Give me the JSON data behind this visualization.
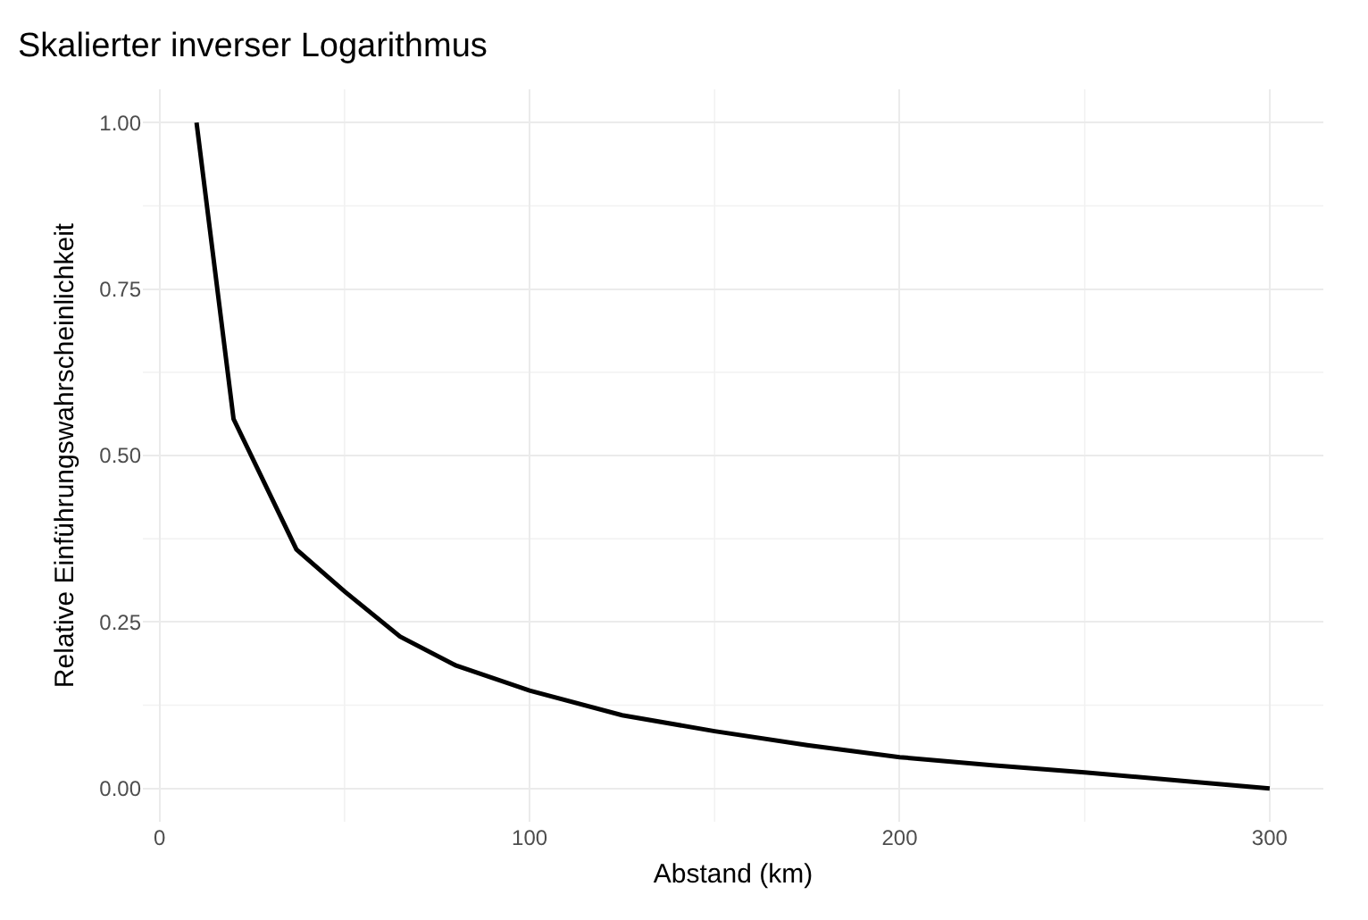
{
  "chart_data": {
    "type": "line",
    "title": "Skalierter inverser Logarithmus",
    "xlabel": "Abstand (km)",
    "ylabel": "Relative Einführungswahrscheinlichkeit",
    "x": [
      10,
      20,
      37,
      50,
      65,
      80,
      100,
      125,
      150,
      175,
      200,
      225,
      250,
      275,
      300
    ],
    "series": [
      {
        "color": "#000000",
        "values": [
          1.0,
          0.555,
          0.359,
          0.296,
          0.228,
          0.185,
          0.147,
          0.11,
          0.086,
          0.065,
          0.047,
          0.035,
          0.024,
          0.012,
          0.0
        ]
      }
    ],
    "xlim": [
      -4.5,
      314.5
    ],
    "xticks": [
      0,
      100,
      200,
      300
    ],
    "ylim": [
      -0.05,
      1.05
    ],
    "yticks": [
      {
        "value": 0,
        "label": "0.00"
      },
      {
        "value": 0.25,
        "label": "0.25"
      },
      {
        "value": 0.5,
        "label": "0.50"
      },
      {
        "value": 0.75,
        "label": "0.75"
      },
      {
        "value": 1,
        "label": "1.00"
      }
    ],
    "grid": true,
    "legend": false,
    "marker": "none",
    "line_style": "solid"
  }
}
